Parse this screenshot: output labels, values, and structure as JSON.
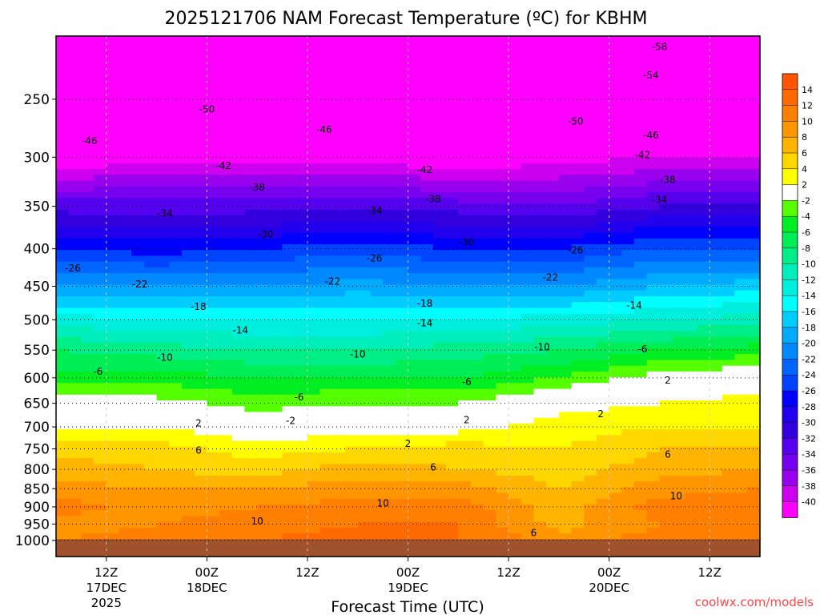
{
  "chart_data": {
    "type": "heatmap",
    "title": "2025121706 NAM Forecast Temperature (ºC) for KBHM",
    "xlabel": "Forecast Time (UTC)",
    "ylabel": "",
    "watermark": "coolwx.com/models",
    "x_hours_range": [
      0,
      84
    ],
    "y_pressure_range": [
      1052,
      205
    ],
    "y_ticks": [
      250,
      300,
      350,
      400,
      450,
      500,
      550,
      600,
      650,
      700,
      750,
      800,
      850,
      900,
      950,
      1000
    ],
    "x_ticks": [
      {
        "hour": 6,
        "line1": "12Z",
        "line2": "17DEC",
        "line3": "2025"
      },
      {
        "hour": 18,
        "line1": "00Z",
        "line2": "18DEC",
        "line3": ""
      },
      {
        "hour": 30,
        "line1": "12Z",
        "line2": "",
        "line3": ""
      },
      {
        "hour": 42,
        "line1": "00Z",
        "line2": "19DEC",
        "line3": ""
      },
      {
        "hour": 54,
        "line1": "12Z",
        "line2": "",
        "line3": ""
      },
      {
        "hour": 66,
        "line1": "00Z",
        "line2": "20DEC",
        "line3": ""
      },
      {
        "hour": 78,
        "line1": "12Z",
        "line2": "",
        "line3": ""
      }
    ],
    "hours": [
      0,
      12,
      24,
      36,
      48,
      60,
      72,
      84
    ],
    "levels": [
      1000,
      950,
      900,
      850,
      800,
      750,
      700,
      650,
      600,
      550,
      500,
      450,
      400,
      350,
      300,
      250,
      200
    ],
    "temperature": [
      [
        10,
        11,
        12,
        13,
        12,
        9,
        11,
        12
      ],
      [
        9,
        10,
        11,
        12,
        12,
        7,
        10,
        11
      ],
      [
        11,
        9,
        10,
        11,
        11,
        7,
        11,
        12
      ],
      [
        9,
        8,
        8,
        9,
        9,
        6,
        9,
        10
      ],
      [
        7,
        6,
        5,
        7,
        6,
        5,
        7,
        8
      ],
      [
        5,
        5,
        3,
        4,
        5,
        4,
        6,
        6
      ],
      [
        2,
        2,
        0,
        1,
        1,
        3,
        4,
        4
      ],
      [
        0,
        -1,
        -3,
        -2,
        -2,
        1,
        2,
        3
      ],
      [
        -5,
        -5,
        -6,
        -6,
        -6,
        -4,
        -1,
        0
      ],
      [
        -8,
        -9,
        -10,
        -10,
        -9,
        -8,
        -6,
        -5
      ],
      [
        -13,
        -14,
        -14,
        -14,
        -14,
        -13,
        -12,
        -11
      ],
      [
        -20,
        -20,
        -20,
        -19,
        -20,
        -20,
        -18,
        -17
      ],
      [
        -26,
        -27,
        -26,
        -25,
        -26,
        -26,
        -24,
        -24
      ],
      [
        -33,
        -33,
        -33,
        -33,
        -33,
        -34,
        -32,
        -32
      ],
      [
        -42,
        -41,
        -41,
        -41,
        -42,
        -41,
        -40,
        -40
      ],
      [
        -49,
        -48,
        -48,
        -48,
        -48,
        -50,
        -49,
        -50
      ],
      [
        -56,
        -55,
        -54,
        -54,
        -55,
        -57,
        -58,
        -58
      ]
    ],
    "contour_labels": [
      {
        "text": "-58",
        "hour": 72,
        "p": 212
      },
      {
        "text": "-54",
        "hour": 71,
        "p": 232
      },
      {
        "text": "-50",
        "hour": 18,
        "p": 258
      },
      {
        "text": "-50",
        "hour": 62,
        "p": 268
      },
      {
        "text": "-46",
        "hour": 4,
        "p": 285
      },
      {
        "text": "-46",
        "hour": 32,
        "p": 275
      },
      {
        "text": "-46",
        "hour": 71,
        "p": 280
      },
      {
        "text": "-42",
        "hour": 20,
        "p": 308
      },
      {
        "text": "-42",
        "hour": 44,
        "p": 312
      },
      {
        "text": "-42",
        "hour": 70,
        "p": 298
      },
      {
        "text": "-38",
        "hour": 24,
        "p": 330
      },
      {
        "text": "-38",
        "hour": 45,
        "p": 342
      },
      {
        "text": "-38",
        "hour": 73,
        "p": 322
      },
      {
        "text": "-34",
        "hour": 13,
        "p": 358
      },
      {
        "text": "-34",
        "hour": 38,
        "p": 355
      },
      {
        "text": "-34",
        "hour": 72,
        "p": 343
      },
      {
        "text": "-30",
        "hour": 25,
        "p": 382
      },
      {
        "text": "-30",
        "hour": 49,
        "p": 392
      },
      {
        "text": "-26",
        "hour": 2,
        "p": 425
      },
      {
        "text": "-26",
        "hour": 38,
        "p": 412
      },
      {
        "text": "-26",
        "hour": 62,
        "p": 402
      },
      {
        "text": "-22",
        "hour": 10,
        "p": 447
      },
      {
        "text": "-22",
        "hour": 33,
        "p": 443
      },
      {
        "text": "-22",
        "hour": 59,
        "p": 438
      },
      {
        "text": "-18",
        "hour": 17,
        "p": 480
      },
      {
        "text": "-18",
        "hour": 44,
        "p": 475
      },
      {
        "text": "-14",
        "hour": 22,
        "p": 517
      },
      {
        "text": "-14",
        "hour": 44,
        "p": 505
      },
      {
        "text": "-14",
        "hour": 69,
        "p": 478
      },
      {
        "text": "-10",
        "hour": 13,
        "p": 563
      },
      {
        "text": "-10",
        "hour": 36,
        "p": 557
      },
      {
        "text": "-10",
        "hour": 58,
        "p": 545
      },
      {
        "text": "-6",
        "hour": 5,
        "p": 588
      },
      {
        "text": "-6",
        "hour": 29,
        "p": 638
      },
      {
        "text": "-6",
        "hour": 49,
        "p": 608
      },
      {
        "text": "-6",
        "hour": 70,
        "p": 548
      },
      {
        "text": "-2",
        "hour": 28,
        "p": 687
      },
      {
        "text": "2",
        "hour": 17,
        "p": 692
      },
      {
        "text": "2",
        "hour": 42,
        "p": 738
      },
      {
        "text": "2",
        "hour": 49,
        "p": 685
      },
      {
        "text": "2",
        "hour": 65,
        "p": 672
      },
      {
        "text": "2",
        "hour": 73,
        "p": 605
      },
      {
        "text": "6",
        "hour": 17,
        "p": 754
      },
      {
        "text": "6",
        "hour": 45,
        "p": 795
      },
      {
        "text": "6",
        "hour": 73,
        "p": 763
      },
      {
        "text": "6",
        "hour": 57,
        "p": 977
      },
      {
        "text": "10",
        "hour": 24,
        "p": 942
      },
      {
        "text": "10",
        "hour": 39,
        "p": 890
      },
      {
        "text": "10",
        "hour": 74,
        "p": 870
      }
    ],
    "colorbar": {
      "labels": [
        "14",
        "12",
        "10",
        "8",
        "6",
        "4",
        "2",
        "-2",
        "-4",
        "-6",
        "-8",
        "-10",
        "-12",
        "-14",
        "-16",
        "-18",
        "-20",
        "-22",
        "-24",
        "-26",
        "-28",
        "-30",
        "-32",
        "-34",
        "-36",
        "-38",
        "-40"
      ],
      "colors": [
        "#ff5500",
        "#ff6a00",
        "#ff8000",
        "#ff9600",
        "#ffb400",
        "#ffd700",
        "#ffff00",
        "#ffffff",
        "#55ff00",
        "#00ee22",
        "#00ee55",
        "#00ee88",
        "#00eebb",
        "#00eedd",
        "#00ffff",
        "#00ccff",
        "#00aaff",
        "#0088ff",
        "#0066ff",
        "#0044ff",
        "#0000ff",
        "#2200ee",
        "#3300dd",
        "#5500ee",
        "#7700ee",
        "#9900ee",
        "#cc00ee",
        "#ff00ff"
      ]
    },
    "ground_color": "#a0522d",
    "freezing_line_color": "#e0207a"
  }
}
